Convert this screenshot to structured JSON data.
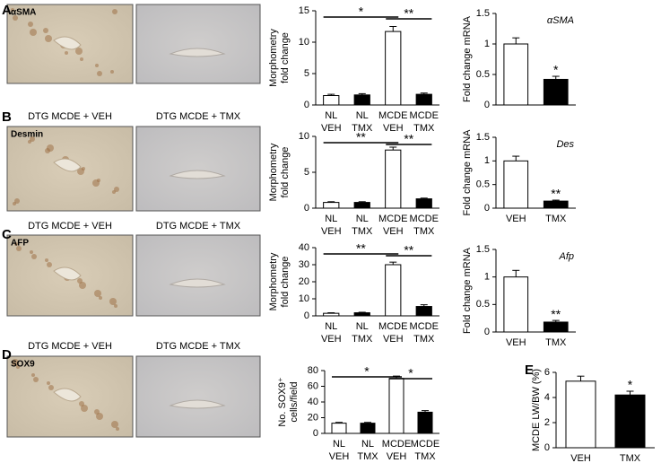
{
  "panel_letters": [
    "A",
    "B",
    "C",
    "D",
    "E"
  ],
  "image_rows": [
    {
      "label": "αSMA"
    },
    {
      "label": "Desmin",
      "headers": [
        "DTG MCDE + VEH",
        "DTG MCDE + TMX"
      ]
    },
    {
      "label": "AFP",
      "headers": [
        "DTG MCDE + VEH",
        "DTG MCDE + TMX"
      ]
    },
    {
      "label": "SOX9",
      "headers": [
        "DTG MCDE + VEH",
        "DTG MCDE + TMX"
      ]
    }
  ],
  "chart_data": [
    {
      "type": "bar",
      "y_label": [
        "Morphometry",
        "fold change"
      ],
      "categories": [
        [
          "NL",
          "VEH"
        ],
        [
          "NL",
          "TMX"
        ],
        [
          "MCDE",
          "VEH"
        ],
        [
          "MCDE",
          "TMX"
        ]
      ],
      "values": [
        1.5,
        1.6,
        11.7,
        1.7
      ],
      "errors": [
        0.2,
        0.2,
        0.8,
        0.2
      ],
      "colors": [
        "#ffffff",
        "#000000",
        "#ffffff",
        "#000000"
      ],
      "ylim": [
        0,
        15
      ],
      "yticks": [
        0,
        5,
        10,
        15
      ],
      "significance": [
        "*",
        "**"
      ]
    },
    {
      "type": "bar",
      "y_label": "Fold change mRNA",
      "title": "αSMA",
      "values": [
        1.0,
        0.42
      ],
      "errors": [
        0.1,
        0.05
      ],
      "colors": [
        "#ffffff",
        "#000000"
      ],
      "ylim": [
        0,
        1.5
      ],
      "yticks": [
        0,
        0.5,
        1,
        1.5
      ],
      "significance": [
        "*"
      ]
    },
    {
      "type": "bar",
      "y_label": [
        "Morphometry",
        "fold change"
      ],
      "categories": [
        [
          "NL",
          "VEH"
        ],
        [
          "NL",
          "TMX"
        ],
        [
          "MCDE",
          "VEH"
        ],
        [
          "MCDE",
          "TMX"
        ]
      ],
      "values": [
        0.8,
        0.8,
        8.1,
        1.3
      ],
      "errors": [
        0.1,
        0.1,
        0.4,
        0.1
      ],
      "colors": [
        "#ffffff",
        "#000000",
        "#ffffff",
        "#000000"
      ],
      "ylim": [
        0,
        10
      ],
      "yticks": [
        0,
        5,
        10
      ],
      "significance": [
        "**",
        "**"
      ]
    },
    {
      "type": "bar",
      "y_label": "Fold change mRNA",
      "title": "Des",
      "categories": [
        "VEH",
        "TMX"
      ],
      "values": [
        1.0,
        0.15
      ],
      "errors": [
        0.1,
        0.02
      ],
      "colors": [
        "#ffffff",
        "#000000"
      ],
      "ylim": [
        0,
        1.5
      ],
      "yticks": [
        0,
        0.5,
        1,
        1.5
      ],
      "significance": [
        "**"
      ]
    },
    {
      "type": "bar",
      "y_label": [
        "Morphometry",
        "fold change"
      ],
      "categories": [
        [
          "NL",
          "VEH"
        ],
        [
          "NL",
          "TMX"
        ],
        [
          "MCDE",
          "VEH"
        ],
        [
          "MCDE",
          "TMX"
        ]
      ],
      "values": [
        1.5,
        1.8,
        30,
        5.5
      ],
      "errors": [
        0.3,
        0.3,
        1.5,
        1.0
      ],
      "colors": [
        "#ffffff",
        "#000000",
        "#ffffff",
        "#000000"
      ],
      "ylim": [
        0,
        40
      ],
      "yticks": [
        0,
        10,
        20,
        30,
        40
      ],
      "significance": [
        "**",
        "**"
      ]
    },
    {
      "type": "bar",
      "y_label": "Fold change mRNA",
      "title": "Afp",
      "categories": [
        "VEH",
        "TMX"
      ],
      "values": [
        1.0,
        0.18
      ],
      "errors": [
        0.12,
        0.03
      ],
      "colors": [
        "#ffffff",
        "#000000"
      ],
      "ylim": [
        0,
        1.5
      ],
      "yticks": [
        0,
        0.5,
        1,
        1.5
      ],
      "significance": [
        "**"
      ]
    },
    {
      "type": "bar",
      "y_label": [
        "No. SOX9⁺",
        "cells/field"
      ],
      "categories": [
        [
          "NL",
          "VEH"
        ],
        [
          "NL",
          "TMX"
        ],
        [
          "MCDE",
          "VEH"
        ],
        [
          "MCDE",
          "TMX"
        ]
      ],
      "values": [
        13,
        13,
        70,
        27
      ],
      "errors": [
        1,
        1,
        3,
        2
      ],
      "colors": [
        "#ffffff",
        "#000000",
        "#ffffff",
        "#000000"
      ],
      "ylim": [
        0,
        80
      ],
      "yticks": [
        0,
        20,
        40,
        60,
        80
      ],
      "significance": [
        "*",
        "*"
      ]
    },
    {
      "type": "bar",
      "y_label": "MCDE LW/BW (%)",
      "categories": [
        "VEH",
        "TMX"
      ],
      "values": [
        5.3,
        4.2
      ],
      "errors": [
        0.4,
        0.3
      ],
      "colors": [
        "#ffffff",
        "#000000"
      ],
      "ylim": [
        0,
        6
      ],
      "yticks": [
        0,
        2,
        4,
        6
      ],
      "significance": [
        "*"
      ]
    }
  ]
}
